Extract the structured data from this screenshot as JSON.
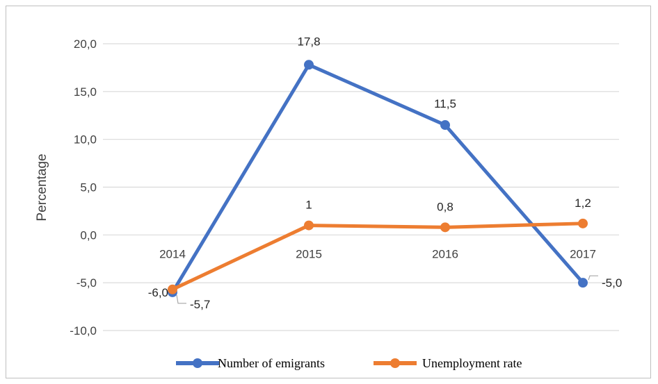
{
  "chart_data": {
    "type": "line",
    "categories": [
      "2014",
      "2015",
      "2016",
      "2017"
    ],
    "series": [
      {
        "name": "Number of emigrants",
        "values": [
          -6.0,
          17.8,
          11.5,
          -5.0
        ],
        "labels": [
          "-6,0",
          "17,8",
          "11,5",
          "-5,0"
        ],
        "color": "#4472c4"
      },
      {
        "name": "Unemployment rate",
        "values": [
          -5.7,
          1.0,
          0.8,
          1.2
        ],
        "labels": [
          "-5,7",
          "1",
          "0,8",
          "1,2"
        ],
        "color": "#ed7d31"
      }
    ],
    "ylabel": "Percentage",
    "xlabel": "",
    "ylim": [
      -10,
      20
    ],
    "yticks": [
      20,
      15,
      10,
      5,
      0,
      -5,
      -10
    ],
    "ytick_labels": [
      "20,0",
      "15,0",
      "10,0",
      "5,0",
      "0,0",
      "-5,0",
      "-10,0"
    ],
    "grid": true,
    "legend_position": "bottom"
  }
}
